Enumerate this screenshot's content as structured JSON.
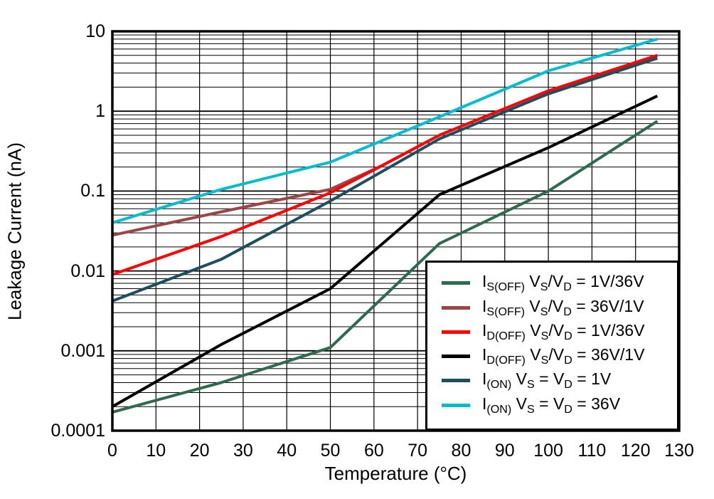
{
  "chart_data": {
    "type": "line",
    "title": "",
    "xlabel": "Temperature (°C)",
    "ylabel": "Leakage Current (nA)",
    "x_axis": {
      "min": 0,
      "max": 130,
      "tick_step": 10,
      "ticks": [
        "0",
        "10",
        "20",
        "30",
        "40",
        "50",
        "60",
        "70",
        "80",
        "90",
        "100",
        "110",
        "120",
        "130"
      ]
    },
    "y_axis": {
      "scale": "log",
      "min": 0.0001,
      "max": 10,
      "ticks": [
        "10",
        "1",
        "0.1",
        "0.01",
        "0.001",
        "0.0001"
      ]
    },
    "grid": {
      "vertical_every": 10,
      "horizontal": "log decades with minor lines 2-9"
    },
    "legend_position": "bottom-right",
    "series": [
      {
        "name": "IS(OFF) VS/VD = 1V/36V",
        "label_segments": [
          [
            "I",
            0
          ],
          [
            "S(OFF)",
            1
          ],
          [
            " V",
            0
          ],
          [
            "S",
            1
          ],
          [
            "/V",
            0
          ],
          [
            "D",
            1
          ],
          [
            " = 1V/36V",
            0
          ]
        ],
        "color": "#2E6B4E",
        "points": [
          [
            0,
            0.00017
          ],
          [
            25,
            0.0004
          ],
          [
            50,
            0.0011
          ],
          [
            75,
            0.022
          ],
          [
            100,
            0.1
          ],
          [
            125,
            0.75
          ]
        ]
      },
      {
        "name": "IS(OFF) VS/VD = 36V/1V",
        "label_segments": [
          [
            "I",
            0
          ],
          [
            "S(OFF)",
            1
          ],
          [
            " V",
            0
          ],
          [
            "S",
            1
          ],
          [
            "/V",
            0
          ],
          [
            "D",
            1
          ],
          [
            " = 36V/1V",
            0
          ]
        ],
        "color": "#9C4545",
        "points": [
          [
            0,
            0.028
          ],
          [
            25,
            0.055
          ],
          [
            50,
            0.105
          ],
          [
            62,
            0.21
          ],
          [
            75,
            0.5
          ],
          [
            100,
            1.8
          ],
          [
            125,
            5.0
          ]
        ]
      },
      {
        "name": "ID(OFF) VS/VD = 1V/36V",
        "label_segments": [
          [
            "I",
            0
          ],
          [
            "D(OFF)",
            1
          ],
          [
            " V",
            0
          ],
          [
            "S",
            1
          ],
          [
            "/V",
            0
          ],
          [
            "D",
            1
          ],
          [
            " = 1V/36V",
            0
          ]
        ],
        "color": "#FF0000",
        "points": [
          [
            0,
            0.009
          ],
          [
            25,
            0.027
          ],
          [
            50,
            0.095
          ],
          [
            62,
            0.21
          ],
          [
            75,
            0.5
          ],
          [
            100,
            1.8
          ],
          [
            125,
            5.0
          ]
        ]
      },
      {
        "name": "ID(OFF) VS/VD = 36V/1V",
        "label_segments": [
          [
            "I",
            0
          ],
          [
            "D(OFF)",
            1
          ],
          [
            " V",
            0
          ],
          [
            "S",
            1
          ],
          [
            "/V",
            0
          ],
          [
            "D",
            1
          ],
          [
            " = 36V/1V",
            0
          ]
        ],
        "color": "#000000",
        "points": [
          [
            0,
            0.0002
          ],
          [
            25,
            0.0012
          ],
          [
            50,
            0.006
          ],
          [
            75,
            0.09
          ],
          [
            100,
            0.35
          ],
          [
            125,
            1.55
          ]
        ]
      },
      {
        "name": "I(ON) VS = VD = 1V",
        "label_segments": [
          [
            "I",
            0
          ],
          [
            "(ON)",
            1
          ],
          [
            " V",
            0
          ],
          [
            "S",
            1
          ],
          [
            " = V",
            0
          ],
          [
            "D",
            1
          ],
          [
            " = 1V",
            0
          ]
        ],
        "color": "#1D4E5F",
        "points": [
          [
            0,
            0.0042
          ],
          [
            25,
            0.014
          ],
          [
            50,
            0.075
          ],
          [
            75,
            0.45
          ],
          [
            100,
            1.65
          ],
          [
            125,
            4.6
          ]
        ]
      },
      {
        "name": "I(ON) VS = VD = 36V",
        "label_segments": [
          [
            "I",
            0
          ],
          [
            "(ON)",
            1
          ],
          [
            " V",
            0
          ],
          [
            "S",
            1
          ],
          [
            " = V",
            0
          ],
          [
            "D",
            1
          ],
          [
            " = 36V",
            0
          ]
        ],
        "color": "#00BCCE",
        "points": [
          [
            0,
            0.04
          ],
          [
            25,
            0.105
          ],
          [
            50,
            0.23
          ],
          [
            75,
            0.85
          ],
          [
            100,
            3.2
          ],
          [
            125,
            8.0
          ]
        ]
      }
    ]
  }
}
